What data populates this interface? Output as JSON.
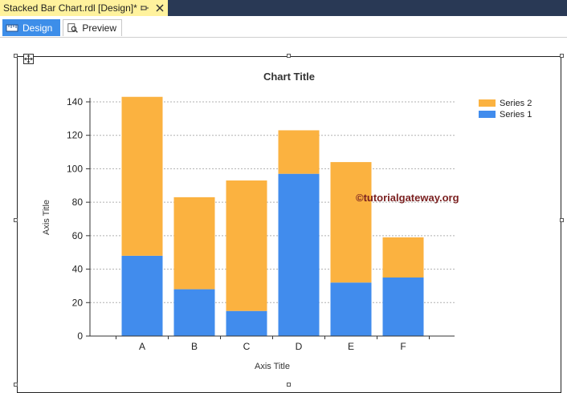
{
  "document_tab": {
    "title": "Stacked Bar Chart.rdl [Design]*",
    "pin_icon": "pin-icon",
    "close_icon": "close-icon"
  },
  "view_tabs": [
    {
      "label": "Design",
      "icon": "ruler-icon",
      "active": true
    },
    {
      "label": "Preview",
      "icon": "preview-icon",
      "active": false
    }
  ],
  "watermark": "©tutorialgateway.org",
  "colors": {
    "series1": "#418ced",
    "series2": "#fbb240",
    "active_tab": "#3d8ee9",
    "doc_tab": "#fff29d",
    "topbar": "#293955"
  },
  "chart_data": {
    "type": "bar",
    "stacked": true,
    "title": "Chart Title",
    "xlabel": "Axis Title",
    "ylabel": "Axis Title",
    "categories": [
      "A",
      "B",
      "C",
      "D",
      "E",
      "F"
    ],
    "series": [
      {
        "name": "Series 1",
        "values": [
          48,
          28,
          15,
          97,
          32,
          35
        ]
      },
      {
        "name": "Series 2",
        "values": [
          95,
          55,
          78,
          26,
          72,
          24
        ]
      }
    ],
    "ylim": [
      0,
      140
    ],
    "yticks": [
      0,
      20,
      40,
      60,
      80,
      100,
      120,
      140
    ],
    "grid": true,
    "legend": "top-right",
    "legend_order": [
      "Series 2",
      "Series 1"
    ]
  }
}
